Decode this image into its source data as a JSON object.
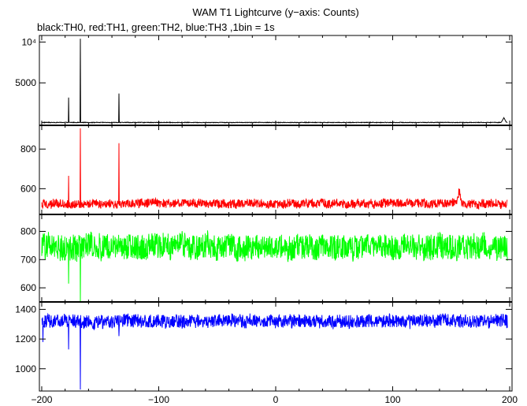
{
  "chart_data": {
    "type": "line",
    "title": "WAM T1 Lightcurve (y−axis: Counts)",
    "subtitle": "black:TH0, red:TH1, green:TH2, blue:TH3 ,1bin = 1s",
    "xlabel": "",
    "ylabel": "",
    "xlim": [
      -202,
      202
    ],
    "x_ticks": [
      -200,
      -100,
      0,
      100,
      200
    ],
    "x_tick_labels": [
      "−200",
      "−100",
      "0",
      "100",
      "200"
    ],
    "grid": false,
    "bin_seconds": 1,
    "panels": [
      {
        "name": "TH0",
        "color": "#000000",
        "ylim": [
          -200,
          10800
        ],
        "y_ticks": [
          5000,
          10000
        ],
        "y_tick_labels": [
          "5000",
          "10⁴"
        ],
        "baseline": 150,
        "noise": 35,
        "bursts": [
          {
            "x": -177,
            "y": 3200
          },
          {
            "x": -167,
            "y": 10400
          },
          {
            "x": -134,
            "y": 3700
          }
        ],
        "dips": [],
        "bumps": [
          {
            "x": 195,
            "y": 700
          }
        ]
      },
      {
        "name": "TH1",
        "color": "#ff0000",
        "ylim": [
          470,
          920
        ],
        "y_ticks": [
          600,
          800
        ],
        "y_tick_labels": [
          "600",
          "800"
        ],
        "baseline": 525,
        "noise": 22,
        "bursts": [
          {
            "x": -177,
            "y": 665
          },
          {
            "x": -167,
            "y": 905
          },
          {
            "x": -134,
            "y": 830
          }
        ],
        "dips": [],
        "bumps": [
          {
            "x": 157,
            "y": 590
          }
        ]
      },
      {
        "name": "TH2",
        "color": "#00ff00",
        "ylim": [
          550,
          860
        ],
        "y_ticks": [
          600,
          700,
          800
        ],
        "y_tick_labels": [
          "600",
          "700",
          "800"
        ],
        "baseline": 745,
        "noise": 45,
        "bursts": [],
        "dips": [
          {
            "x": -177,
            "y": 615
          },
          {
            "x": -167,
            "y": 550
          }
        ],
        "bumps": []
      },
      {
        "name": "TH3",
        "color": "#0000ff",
        "ylim": [
          850,
          1450
        ],
        "y_ticks": [
          1000,
          1200,
          1400
        ],
        "y_tick_labels": [
          "1000",
          "1200",
          "1400"
        ],
        "baseline": 1320,
        "noise": 45,
        "bursts": [],
        "dips": [
          {
            "x": -199,
            "y": 1180
          },
          {
            "x": -177,
            "y": 1130
          },
          {
            "x": -167,
            "y": 860
          },
          {
            "x": -134,
            "y": 1220
          }
        ],
        "bumps": []
      }
    ]
  }
}
